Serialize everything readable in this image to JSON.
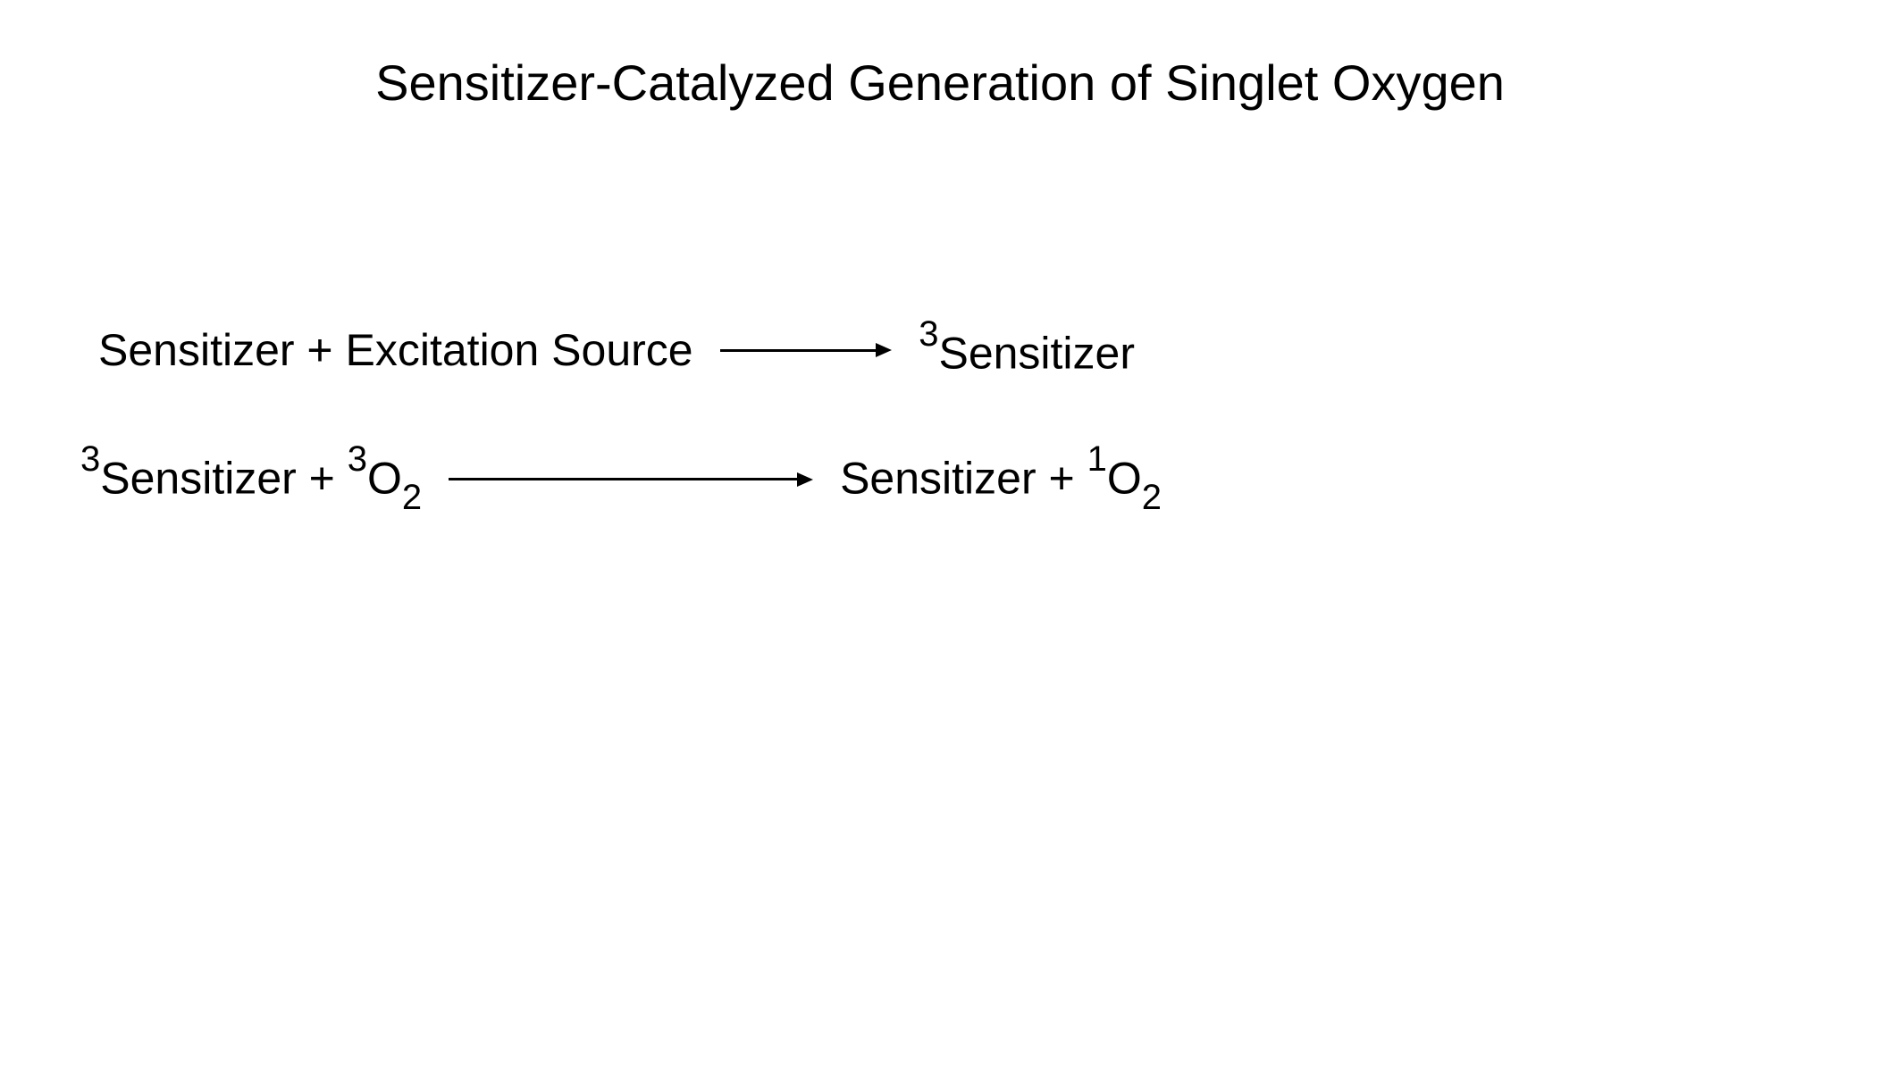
{
  "diagram": {
    "type": "flowchart",
    "title": "Sensitizer-Catalyzed Generation of Singlet Oxygen",
    "title_fontsize": 56,
    "text_color": "#000000",
    "background_color": "#ffffff",
    "body_fontsize": 50,
    "superscript_fontsize": 40,
    "subscript_fontsize": 40,
    "arrow_color": "#000000",
    "arrow_thickness": 3,
    "equations": [
      {
        "left": {
          "segments": [
            {
              "text": "Sensitizer + Excitation Source"
            }
          ]
        },
        "right": {
          "segments": [
            {
              "sup": "3"
            },
            {
              "text": "Sensitizer"
            }
          ]
        }
      },
      {
        "left": {
          "segments": [
            {
              "sup": "3"
            },
            {
              "text": "Sensitizer + "
            },
            {
              "sup": "3"
            },
            {
              "text": "O"
            },
            {
              "sub": "2"
            }
          ]
        },
        "right": {
          "segments": [
            {
              "text": "Sensitizer + "
            },
            {
              "sup": "1"
            },
            {
              "text": "O"
            },
            {
              "sub": "2"
            }
          ]
        }
      }
    ]
  },
  "labels": {
    "eq1_left": "Sensitizer + Excitation Source",
    "eq1_right_sup": "3",
    "eq1_right_text": "Sensitizer",
    "eq2_left_sup1": "3",
    "eq2_left_text1": "Sensitizer + ",
    "eq2_left_sup2": "3",
    "eq2_left_text2": "O",
    "eq2_left_sub": "2",
    "eq2_right_text1": "Sensitizer + ",
    "eq2_right_sup": "1",
    "eq2_right_text2": "O",
    "eq2_right_sub": "2"
  }
}
